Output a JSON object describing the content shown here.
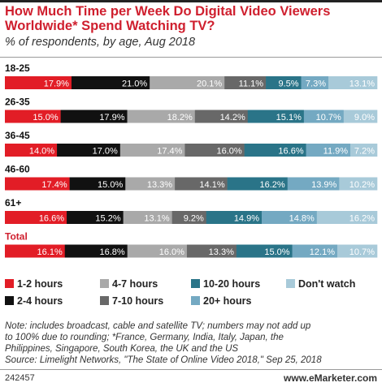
{
  "title": "How Much Time per Week Do Digital Video Viewers Worldwide* Spend Watching TV?",
  "subtitle": "% of respondents, by age, Aug 2018",
  "colors": {
    "title": "#cf1f2e",
    "age_label": "#111111",
    "total_label": "#cf1f2e",
    "segments": [
      "#e21d26",
      "#111111",
      "#a9a9a9",
      "#686868",
      "#2a7488",
      "#74a9c2",
      "#a8cad9"
    ]
  },
  "chart_data": {
    "type": "bar",
    "stacked": true,
    "orientation": "horizontal",
    "unit": "%",
    "categories": [
      "18-25",
      "26-35",
      "36-45",
      "46-60",
      "61+",
      "Total"
    ],
    "series": [
      {
        "name": "1-2 hours",
        "values": [
          17.9,
          15.0,
          14.0,
          17.4,
          16.6,
          16.1
        ]
      },
      {
        "name": "2-4 hours",
        "values": [
          21.0,
          17.9,
          17.0,
          15.0,
          15.2,
          16.8
        ]
      },
      {
        "name": "4-7 hours",
        "values": [
          20.1,
          18.2,
          17.4,
          13.3,
          13.1,
          16.0
        ]
      },
      {
        "name": "7-10 hours",
        "values": [
          11.1,
          14.2,
          16.0,
          14.1,
          9.2,
          13.3
        ]
      },
      {
        "name": "10-20 hours",
        "values": [
          9.5,
          15.1,
          16.6,
          16.2,
          14.9,
          15.0
        ]
      },
      {
        "name": "20+ hours",
        "values": [
          7.3,
          10.7,
          11.9,
          13.9,
          14.8,
          12.1
        ]
      },
      {
        "name": "Don't watch",
        "values": [
          13.1,
          9.0,
          7.2,
          10.2,
          16.2,
          10.7
        ]
      }
    ],
    "legend_placement": "bottom",
    "legend_order": [
      "1-2 hours",
      "4-7 hours",
      "10-20 hours",
      "Don't watch",
      "2-4 hours",
      "7-10 hours",
      "20+ hours"
    ]
  },
  "notes": {
    "note_line1": "Note: includes broadcast, cable and satellite TV; numbers may not add up",
    "note_line2": "to 100% due to rounding; *France, Germany, India, Italy, Japan, the",
    "note_line3": "Philippines, Singapore, South Korea, the UK and the US",
    "source": "Source: Limelight Networks, \"The State of Online Video 2018,\" Sep 25, 2018"
  },
  "footer": {
    "chart_id": "242457",
    "brand_prefix": "www.",
    "brand_e": "e",
    "brand_suffix": "Marketer.com"
  }
}
